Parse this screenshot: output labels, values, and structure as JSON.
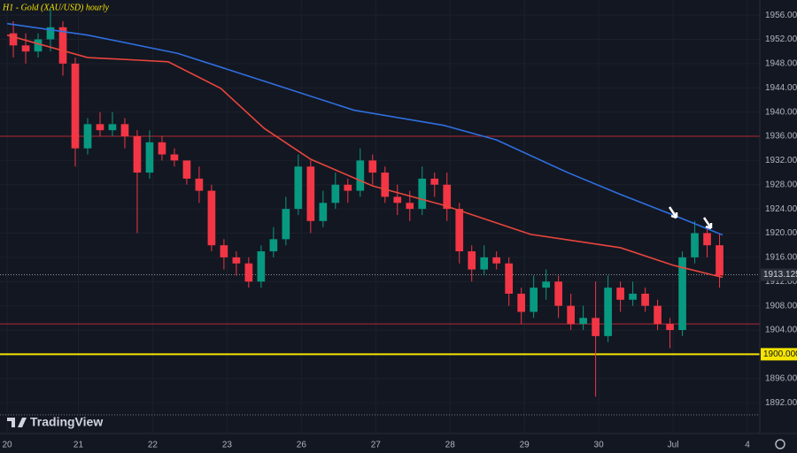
{
  "chart_data": {
    "type": "candlestick",
    "title": "H1 - Gold (XAU/USD) hourly",
    "watermark": "TradingView",
    "x": [
      2,
      6,
      10,
      14,
      18,
      22,
      26,
      30,
      34,
      38,
      42,
      46,
      50,
      54,
      58,
      62,
      66,
      70,
      74,
      78,
      82,
      86,
      90,
      94,
      98,
      102,
      106,
      110,
      114,
      118,
      122,
      126,
      130,
      134,
      138,
      142,
      146,
      150,
      154,
      158,
      162,
      166,
      170,
      174,
      178,
      182,
      186,
      190,
      194,
      198,
      202,
      206,
      210,
      214,
      218,
      222,
      226,
      230
    ],
    "open": [
      1953,
      1951,
      1950,
      1952,
      1954,
      1948,
      1934,
      1938,
      1937,
      1938,
      1936,
      1930,
      1935,
      1933,
      1932,
      1929,
      1927,
      1918,
      1916,
      1915,
      1912,
      1917,
      1919,
      1924,
      1931,
      1922,
      1925,
      1928,
      1927,
      1932,
      1930,
      1926,
      1925,
      1924,
      1929,
      1928,
      1924,
      1917,
      1914,
      1916,
      1915,
      1910,
      1907,
      1911,
      1912,
      1908,
      1905,
      1906,
      1903,
      1911,
      1909,
      1910,
      1908,
      1905,
      1904,
      1916,
      1920,
      1918
    ],
    "high": [
      1955,
      1953,
      1953,
      1957,
      1955,
      1949,
      1939,
      1940,
      1940,
      1939,
      1937,
      1937,
      1936,
      1934,
      1932,
      1931,
      1928,
      1919,
      1917,
      1916,
      1918,
      1921,
      1926,
      1933,
      1932,
      1927,
      1930,
      1929,
      1934,
      1933,
      1931,
      1928,
      1927,
      1931,
      1930,
      1930,
      1925,
      1918,
      1918,
      1917,
      1916,
      1911,
      1913,
      1914,
      1913,
      1910,
      1908,
      1912,
      1913,
      1912,
      1912,
      1911,
      1909,
      1906,
      1917,
      1922,
      1921,
      1920
    ],
    "low": [
      1949,
      1948,
      1949,
      1950,
      1946,
      1931,
      1933,
      1936,
      1936,
      1934,
      1920,
      1929,
      1932,
      1931,
      1928,
      1925,
      1917,
      1914,
      1913,
      1911,
      1911,
      1916,
      1918,
      1923,
      1920,
      1921,
      1924,
      1925,
      1926,
      1928,
      1925,
      1923,
      1922,
      1923,
      1926,
      1922,
      1915,
      1912,
      1913,
      1914,
      1908,
      1905,
      1906,
      1909,
      1906,
      1904,
      1904,
      1893,
      1902,
      1907,
      1908,
      1907,
      1904,
      1901,
      1903,
      1915,
      1916,
      1911
    ],
    "close": [
      1951,
      1950,
      1952,
      1954,
      1948,
      1934,
      1938,
      1937,
      1938,
      1936,
      1930,
      1935,
      1933,
      1932,
      1929,
      1927,
      1918,
      1916,
      1915,
      1912,
      1917,
      1919,
      1924,
      1931,
      1922,
      1925,
      1928,
      1927,
      1932,
      1930,
      1926,
      1925,
      1924,
      1929,
      1928,
      1924,
      1917,
      1914,
      1916,
      1915,
      1910,
      1907,
      1911,
      1912,
      1908,
      1905,
      1906,
      1903,
      1911,
      1909,
      1910,
      1908,
      1905,
      1904,
      1916,
      1920,
      1918,
      1913
    ],
    "up_color": "#089981",
    "down_color": "#f23645",
    "lines": [
      {
        "color": "#2f6fe0",
        "x": [
          0,
          26,
          55,
          83,
          112,
          141,
          158,
          181,
          198,
          215,
          231
        ],
        "values": [
          1954.6,
          1952.7,
          1949.7,
          1945.1,
          1940.3,
          1937.8,
          1935.4,
          1930,
          1926.4,
          1923,
          1919.7
        ]
      },
      {
        "color": "#e8453c",
        "x": [
          0,
          26,
          41,
          52,
          69,
          83,
          98,
          118,
          141,
          169,
          198,
          215,
          231
        ],
        "values": [
          1952.7,
          1949,
          1948.6,
          1948.3,
          1943.9,
          1937.3,
          1932.2,
          1927.8,
          1924.6,
          1919.8,
          1917.6,
          1914.7,
          1912.7
        ]
      }
    ],
    "hlines": [
      {
        "value": 1936,
        "color": "#b22833",
        "style": "solid"
      },
      {
        "value": 1905,
        "color": "#b22833",
        "style": "solid"
      },
      {
        "value": 1900,
        "color": "#f5e400",
        "style": "solid",
        "label": "1900.000"
      },
      {
        "value": 1913.125,
        "color": "#9598a1",
        "style": "dotted"
      },
      {
        "value": 1890,
        "color": "#787b86",
        "style": "dotted"
      }
    ],
    "current_price": 1913.125,
    "xlim": [
      -2.3,
      243
    ],
    "xticks": [
      {
        "value": 0,
        "label": "20"
      },
      {
        "value": 23,
        "label": "21"
      },
      {
        "value": 47,
        "label": "22"
      },
      {
        "value": 71,
        "label": "23"
      },
      {
        "value": 95,
        "label": "26"
      },
      {
        "value": 119,
        "label": "27"
      },
      {
        "value": 143,
        "label": "28"
      },
      {
        "value": 167,
        "label": "29"
      },
      {
        "value": 191,
        "label": "30"
      },
      {
        "value": 215,
        "label": "Jul"
      },
      {
        "value": 239,
        "label": "4"
      }
    ],
    "ylim": [
      1887.2,
      1958.5
    ],
    "yticks": [
      {
        "value": 1956,
        "label": "1956.000"
      },
      {
        "value": 1952,
        "label": "1952.000"
      },
      {
        "value": 1948,
        "label": "1948.000"
      },
      {
        "value": 1944,
        "label": "1944.000"
      },
      {
        "value": 1940,
        "label": "1940.000"
      },
      {
        "value": 1936,
        "label": "1936.000"
      },
      {
        "value": 1932,
        "label": "1932.000"
      },
      {
        "value": 1928,
        "label": "1928.000"
      },
      {
        "value": 1924,
        "label": "1924.000"
      },
      {
        "value": 1920,
        "label": "1920.000"
      },
      {
        "value": 1916,
        "label": "1916.000"
      },
      {
        "value": 1912,
        "label": "1912.000"
      },
      {
        "value": 1908,
        "label": "1908.000"
      },
      {
        "value": 1904,
        "label": "1904.000"
      },
      {
        "value": 1896,
        "label": "1896.000"
      },
      {
        "value": 1892,
        "label": "1892.000"
      }
    ],
    "grid": true
  }
}
